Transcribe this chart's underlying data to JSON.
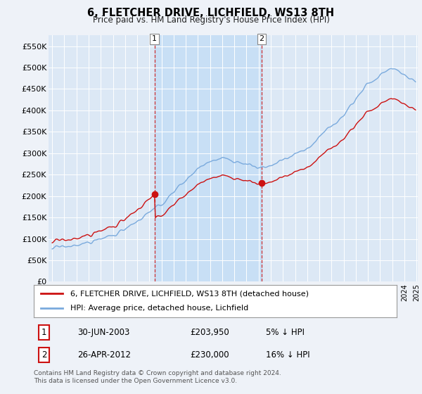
{
  "title": "6, FLETCHER DRIVE, LICHFIELD, WS13 8TH",
  "subtitle": "Price paid vs. HM Land Registry's House Price Index (HPI)",
  "ylim": [
    0,
    575000
  ],
  "yticks": [
    0,
    50000,
    100000,
    150000,
    200000,
    250000,
    300000,
    350000,
    400000,
    450000,
    500000,
    550000
  ],
  "ytick_labels": [
    "£0",
    "£50K",
    "£100K",
    "£150K",
    "£200K",
    "£250K",
    "£300K",
    "£350K",
    "£400K",
    "£450K",
    "£500K",
    "£550K"
  ],
  "background_color": "#eef2f8",
  "plot_bg_color": "#dce8f5",
  "shade_color": "#c8dff5",
  "hpi_color": "#7aaadd",
  "price_color": "#cc1111",
  "sale1": {
    "date": "30-JUN-2003",
    "price": 203950,
    "pct": "5%",
    "dir": "↓"
  },
  "sale2": {
    "date": "26-APR-2012",
    "price": 230000,
    "pct": "16%",
    "dir": "↓"
  },
  "legend_label1": "6, FLETCHER DRIVE, LICHFIELD, WS13 8TH (detached house)",
  "legend_label2": "HPI: Average price, detached house, Lichfield",
  "footer": "Contains HM Land Registry data © Crown copyright and database right 2024.\nThis data is licensed under the Open Government Licence v3.0.",
  "hpi_anchors_t": [
    0,
    0.1,
    0.2,
    0.3,
    0.4,
    0.467,
    0.533,
    0.567,
    0.6,
    0.7,
    0.8,
    0.867,
    0.933,
    1.0
  ],
  "hpi_anchors_v": [
    78000,
    90000,
    120000,
    180000,
    265000,
    290000,
    275000,
    265000,
    270000,
    310000,
    390000,
    460000,
    500000,
    470000
  ],
  "noise_scale": 5000,
  "noise_seed": 17
}
